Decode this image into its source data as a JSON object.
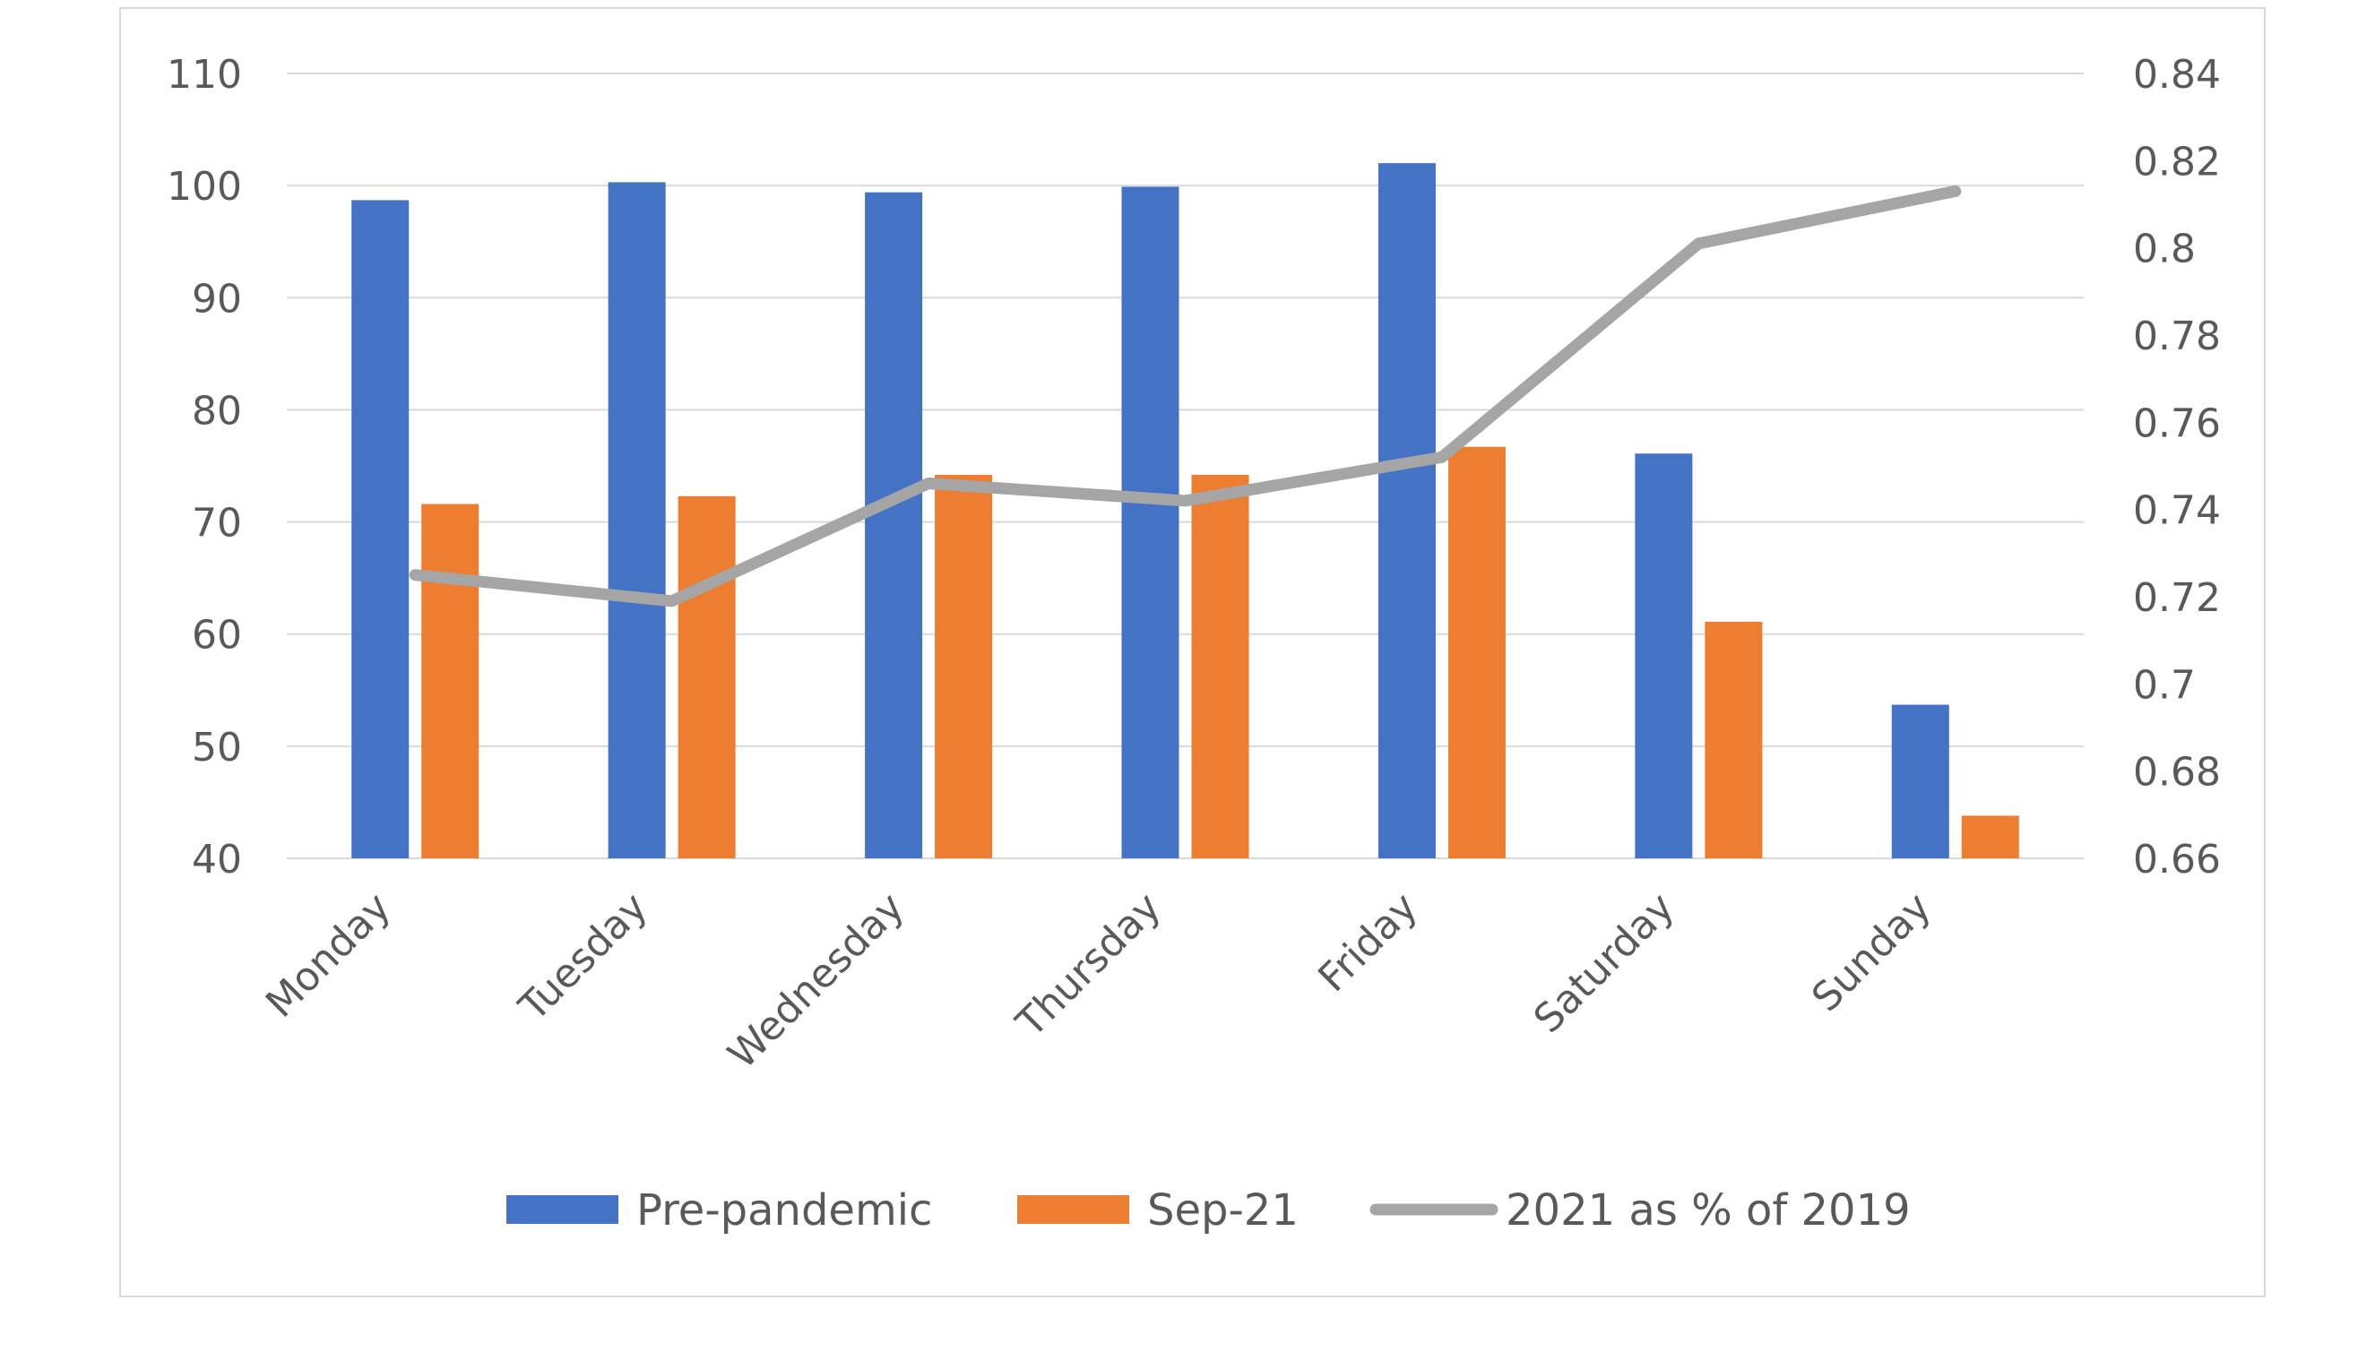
{
  "chart_data": {
    "type": "bar",
    "categories": [
      "Monday",
      "Tuesday",
      "Wednesday",
      "Thursday",
      "Friday",
      "Saturday",
      "Sunday"
    ],
    "series": [
      {
        "name": "Pre-pandemic",
        "type": "bar",
        "axis": "left",
        "color": "#4472c4",
        "values": [
          98.7,
          100.3,
          99.4,
          99.9,
          102,
          76.1,
          53.7
        ]
      },
      {
        "name": "Sep-21",
        "type": "bar",
        "axis": "left",
        "color": "#ed7d31",
        "values": [
          71.6,
          72.3,
          74.2,
          74.2,
          76.7,
          61.1,
          43.8
        ]
      },
      {
        "name": "2021 as % of 2019",
        "type": "line",
        "axis": "right",
        "color": "#a5a5a5",
        "values": [
          0.725,
          0.719,
          0.746,
          0.742,
          0.752,
          0.801,
          0.813
        ]
      }
    ],
    "y_left": {
      "min": 40,
      "max": 110,
      "ticks": [
        "40",
        "50",
        "60",
        "70",
        "80",
        "90",
        "100",
        "110"
      ]
    },
    "y_right": {
      "min": 0.66,
      "max": 0.84,
      "ticks": [
        "0.66",
        "0.68",
        "0.7",
        "0.72",
        "0.74",
        "0.76",
        "0.78",
        "0.8",
        "0.82",
        "0.84"
      ]
    },
    "grid": true,
    "legend_position": "bottom",
    "title": "",
    "xlabel": "",
    "ylabel": ""
  }
}
